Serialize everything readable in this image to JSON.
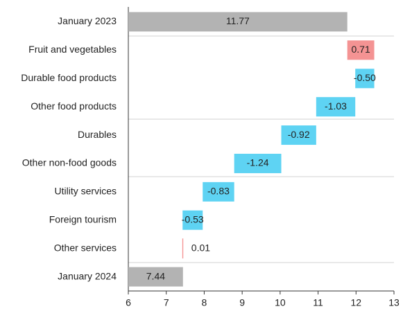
{
  "chart_data": {
    "type": "waterfall",
    "categories": [
      "January 2023",
      "Fruit and vegetables",
      "Durable food products",
      "Other food products",
      "Durables",
      "Other non-food goods",
      "Utility services",
      "Foreign tourism",
      "Other services",
      "January 2024"
    ],
    "values": [
      11.77,
      0.71,
      -0.5,
      -1.03,
      -0.92,
      -1.24,
      -0.83,
      -0.53,
      0.01,
      7.44
    ],
    "value_labels": [
      "11.77",
      "0.71",
      "-0.50",
      "-1.03",
      "-0.92",
      "-1.24",
      "-0.83",
      "-0.53",
      "0.01",
      "7.44"
    ],
    "measure": [
      "total",
      "relative",
      "relative",
      "relative",
      "relative",
      "relative",
      "relative",
      "relative",
      "relative",
      "total"
    ],
    "colors": {
      "total": "#b3b3b3",
      "increase": "#f49393",
      "decrease": "#5ed3f3"
    },
    "xlim": [
      6,
      13
    ],
    "xticks": [
      6,
      7,
      8,
      9,
      10,
      11,
      12,
      13
    ]
  }
}
